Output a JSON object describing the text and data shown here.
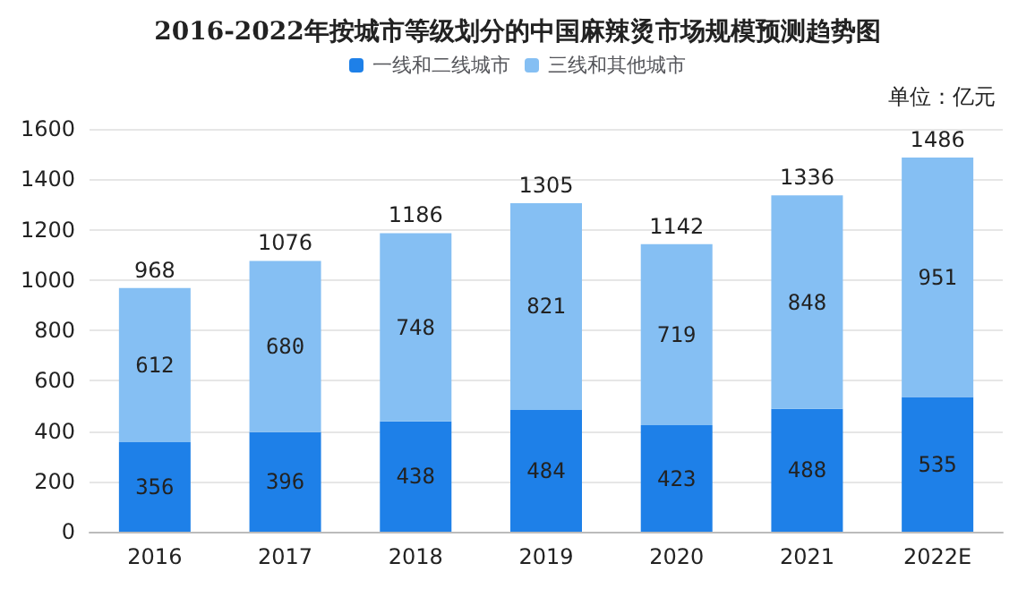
{
  "chart_data": {
    "type": "bar",
    "title": "2016-2022年按城市等级划分的中国麻辣烫市场规模预测趋势图",
    "categories": [
      "2016",
      "2017",
      "2018",
      "2019",
      "2020",
      "2021",
      "2022E"
    ],
    "stacked": true,
    "data_labels": true,
    "series": [
      {
        "name": "一线和二线城市",
        "color": "#1e80e8",
        "values": [
          356,
          396,
          438,
          484,
          423,
          488,
          535
        ]
      },
      {
        "name": "三线和其他城市",
        "color": "#85bff3",
        "values": [
          612,
          680,
          748,
          821,
          719,
          848,
          951
        ]
      }
    ],
    "totals": [
      "968",
      "1076",
      "1186",
      "1305",
      "1142",
      "1336",
      "1486"
    ],
    "ylim": [
      0,
      1600
    ],
    "yticks": [
      0,
      200,
      400,
      600,
      800,
      1000,
      1200,
      1400,
      1600
    ],
    "grid": "y",
    "legend": "top",
    "annotations": [
      "单位：亿元"
    ]
  }
}
